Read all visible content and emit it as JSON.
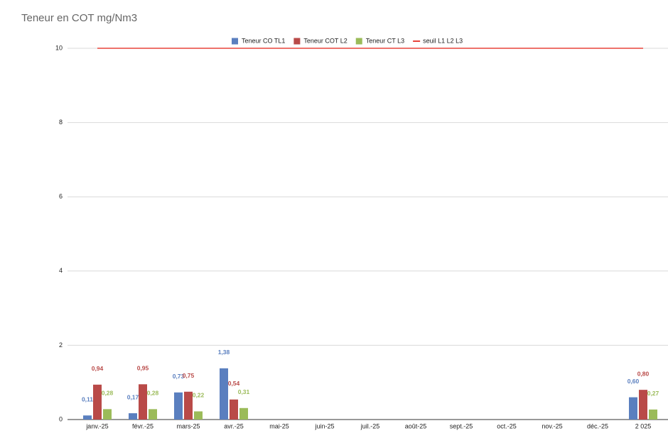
{
  "chart_data": {
    "type": "bar",
    "title": "Teneur en COT mg/Nm3",
    "categories": [
      "janv.-25",
      "févr.-25",
      "mars-25",
      "avr.-25",
      "mai-25",
      "juin-25",
      "juil.-25",
      "août-25",
      "sept.-25",
      "oct.-25",
      "nov.-25",
      "déc.-25",
      "2 025"
    ],
    "series": [
      {
        "name": "Teneur CO TL1",
        "color": "#5a7fbf",
        "type": "bar",
        "values": [
          0.11,
          0.17,
          0.73,
          1.38,
          null,
          null,
          null,
          null,
          null,
          null,
          null,
          null,
          0.6
        ],
        "value_labels": [
          "0,11",
          "0,17",
          "0,73",
          "1,38",
          null,
          null,
          null,
          null,
          null,
          null,
          null,
          null,
          "0,60"
        ]
      },
      {
        "name": "Teneur COT L2",
        "color": "#b94a48",
        "type": "bar",
        "values": [
          0.94,
          0.95,
          0.75,
          0.54,
          null,
          null,
          null,
          null,
          null,
          null,
          null,
          null,
          0.8
        ],
        "value_labels": [
          "0,94",
          "0,95",
          "0,75",
          "0,54",
          null,
          null,
          null,
          null,
          null,
          null,
          null,
          null,
          "0,80"
        ]
      },
      {
        "name": "Teneur CT L3",
        "color": "#9bbb59",
        "type": "bar",
        "values": [
          0.28,
          0.28,
          0.22,
          0.31,
          null,
          null,
          null,
          null,
          null,
          null,
          null,
          null,
          0.27
        ],
        "value_labels": [
          "0,28",
          "0,28",
          "0,22",
          "0,31",
          null,
          null,
          null,
          null,
          null,
          null,
          null,
          null,
          "0,27"
        ]
      },
      {
        "name": "seuil L1 L2 L3",
        "color": "#e8433a",
        "type": "line",
        "values": [
          10,
          10,
          10,
          10,
          10,
          10,
          10,
          10,
          10,
          10,
          10,
          10,
          10
        ]
      }
    ],
    "ylim": [
      0,
      10
    ],
    "yticks": [
      0,
      2,
      4,
      6,
      8,
      10
    ],
    "grid": true,
    "legend": "top"
  }
}
